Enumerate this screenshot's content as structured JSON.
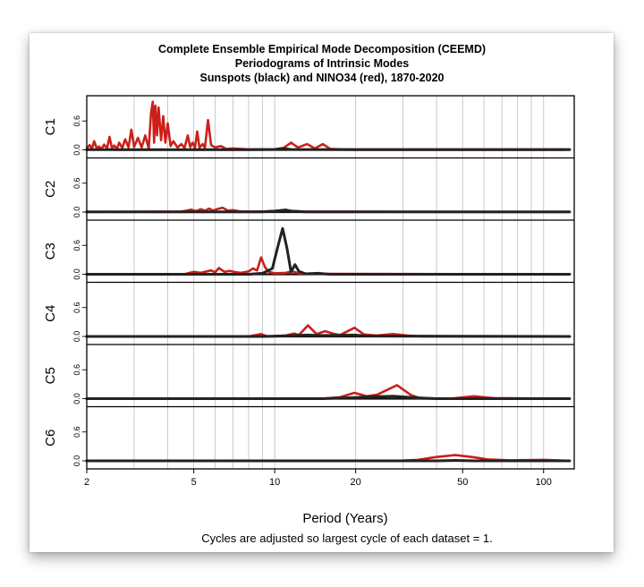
{
  "chart_data": {
    "type": "line",
    "title": [
      "Complete Ensemble Empirical Mode Decomposition (CEEMD)",
      "Periodograms of Intrinsic Modes",
      "Sunspots (black) and NINO34 (red), 1870-2020"
    ],
    "xlabel": "Period (Years)",
    "footnote": "Cycles are adjusted so largest cycle of each dataset = 1.",
    "x_scale": "log",
    "xlim": [
      2,
      130
    ],
    "x_ticks": [
      2,
      5,
      10,
      20,
      50,
      100
    ],
    "ylim": [
      0,
      1.05
    ],
    "y_ticks": [
      0.0,
      0.6
    ],
    "grid": true,
    "series_colors": {
      "sunspots": "#222222",
      "nino34": "#cc1f1a"
    },
    "panels": [
      {
        "label": "C1",
        "series": [
          {
            "color": "#cc1f1a",
            "points": [
              [
                2.0,
                0.03
              ],
              [
                2.05,
                0.1
              ],
              [
                2.09,
                0.02
              ],
              [
                2.13,
                0.18
              ],
              [
                2.18,
                0.03
              ],
              [
                2.22,
                0.07
              ],
              [
                2.27,
                0.02
              ],
              [
                2.32,
                0.11
              ],
              [
                2.38,
                0.03
              ],
              [
                2.43,
                0.27
              ],
              [
                2.48,
                0.04
              ],
              [
                2.53,
                0.09
              ],
              [
                2.59,
                0.02
              ],
              [
                2.64,
                0.15
              ],
              [
                2.71,
                0.04
              ],
              [
                2.78,
                0.22
              ],
              [
                2.86,
                0.05
              ],
              [
                2.93,
                0.42
              ],
              [
                3.0,
                0.06
              ],
              [
                3.1,
                0.25
              ],
              [
                3.2,
                0.05
              ],
              [
                3.3,
                0.3
              ],
              [
                3.4,
                0.03
              ],
              [
                3.47,
                0.78
              ],
              [
                3.52,
                1.0
              ],
              [
                3.56,
                0.15
              ],
              [
                3.6,
                0.92
              ],
              [
                3.65,
                0.3
              ],
              [
                3.7,
                0.88
              ],
              [
                3.78,
                0.2
              ],
              [
                3.85,
                0.7
              ],
              [
                3.92,
                0.15
              ],
              [
                4.0,
                0.55
              ],
              [
                4.1,
                0.08
              ],
              [
                4.2,
                0.18
              ],
              [
                4.35,
                0.05
              ],
              [
                4.5,
                0.12
              ],
              [
                4.62,
                0.04
              ],
              [
                4.75,
                0.3
              ],
              [
                4.85,
                0.06
              ],
              [
                4.95,
                0.15
              ],
              [
                5.05,
                0.04
              ],
              [
                5.15,
                0.38
              ],
              [
                5.25,
                0.05
              ],
              [
                5.4,
                0.12
              ],
              [
                5.5,
                0.04
              ],
              [
                5.65,
                0.62
              ],
              [
                5.8,
                0.1
              ],
              [
                6.0,
                0.05
              ],
              [
                6.3,
                0.08
              ],
              [
                6.6,
                0.02
              ],
              [
                7.0,
                0.03
              ],
              [
                8.0,
                0.01
              ],
              [
                10.0,
                0.01
              ],
              [
                10.8,
                0.04
              ],
              [
                11.5,
                0.15
              ],
              [
                12.2,
                0.05
              ],
              [
                13.2,
                0.12
              ],
              [
                14.1,
                0.03
              ],
              [
                15.1,
                0.12
              ],
              [
                16.1,
                0.02
              ],
              [
                18.0,
                0.01
              ],
              [
                25.0,
                0.01
              ],
              [
                60.0,
                0.01
              ],
              [
                125.0,
                0.01
              ]
            ]
          },
          {
            "color": "#222222",
            "points": [
              [
                2.0,
                0.005
              ],
              [
                8.0,
                0.005
              ],
              [
                10.0,
                0.01
              ],
              [
                10.7,
                0.03
              ],
              [
                11.5,
                0.01
              ],
              [
                20.0,
                0.005
              ],
              [
                125.0,
                0.005
              ]
            ]
          }
        ]
      },
      {
        "label": "C2",
        "series": [
          {
            "color": "#cc1f1a",
            "points": [
              [
                2.0,
                0.0
              ],
              [
                4.5,
                0.01
              ],
              [
                4.9,
                0.05
              ],
              [
                5.1,
                0.02
              ],
              [
                5.3,
                0.06
              ],
              [
                5.5,
                0.03
              ],
              [
                5.7,
                0.07
              ],
              [
                5.9,
                0.03
              ],
              [
                6.1,
                0.06
              ],
              [
                6.4,
                0.09
              ],
              [
                6.7,
                0.03
              ],
              [
                7.0,
                0.04
              ],
              [
                7.5,
                0.01
              ],
              [
                9.0,
                0.01
              ],
              [
                10.5,
                0.03
              ],
              [
                11.0,
                0.05
              ],
              [
                11.5,
                0.02
              ],
              [
                13.0,
                0.01
              ],
              [
                125.0,
                0.0
              ]
            ]
          },
          {
            "color": "#222222",
            "points": [
              [
                2.0,
                0.005
              ],
              [
                9.0,
                0.005
              ],
              [
                10.0,
                0.02
              ],
              [
                10.8,
                0.04
              ],
              [
                11.6,
                0.02
              ],
              [
                13.0,
                0.005
              ],
              [
                125.0,
                0.005
              ]
            ]
          }
        ]
      },
      {
        "label": "C3",
        "series": [
          {
            "color": "#cc1f1a",
            "points": [
              [
                2.0,
                0.0
              ],
              [
                4.6,
                0.0
              ],
              [
                5.0,
                0.05
              ],
              [
                5.3,
                0.03
              ],
              [
                5.5,
                0.05
              ],
              [
                5.8,
                0.08
              ],
              [
                6.0,
                0.04
              ],
              [
                6.2,
                0.13
              ],
              [
                6.5,
                0.05
              ],
              [
                6.8,
                0.07
              ],
              [
                7.2,
                0.04
              ],
              [
                7.5,
                0.03
              ],
              [
                8.0,
                0.06
              ],
              [
                8.3,
                0.12
              ],
              [
                8.6,
                0.08
              ],
              [
                8.9,
                0.35
              ],
              [
                9.2,
                0.15
              ],
              [
                9.5,
                0.05
              ],
              [
                10.0,
                0.02
              ],
              [
                11.0,
                0.03
              ],
              [
                11.6,
                0.06
              ],
              [
                12.3,
                0.02
              ],
              [
                13.0,
                0.01
              ],
              [
                125.0,
                0.0
              ]
            ]
          },
          {
            "color": "#222222",
            "points": [
              [
                2.0,
                0.0
              ],
              [
                8.0,
                0.0
              ],
              [
                9.0,
                0.02
              ],
              [
                9.8,
                0.12
              ],
              [
                10.3,
                0.6
              ],
              [
                10.7,
                0.95
              ],
              [
                11.1,
                0.55
              ],
              [
                11.5,
                0.05
              ],
              [
                11.9,
                0.2
              ],
              [
                12.3,
                0.06
              ],
              [
                13.0,
                0.01
              ],
              [
                14.5,
                0.02
              ],
              [
                16.0,
                0.0
              ],
              [
                125.0,
                0.0
              ]
            ]
          }
        ]
      },
      {
        "label": "C4",
        "series": [
          {
            "color": "#cc1f1a",
            "points": [
              [
                2.0,
                0.0
              ],
              [
                8.0,
                0.0
              ],
              [
                8.9,
                0.05
              ],
              [
                9.4,
                0.0
              ],
              [
                11.0,
                0.02
              ],
              [
                11.8,
                0.06
              ],
              [
                12.3,
                0.03
              ],
              [
                13.3,
                0.23
              ],
              [
                14.3,
                0.05
              ],
              [
                15.4,
                0.11
              ],
              [
                16.7,
                0.05
              ],
              [
                17.5,
                0.03
              ],
              [
                19.8,
                0.18
              ],
              [
                21.5,
                0.04
              ],
              [
                24.0,
                0.02
              ],
              [
                27.5,
                0.05
              ],
              [
                31.0,
                0.02
              ],
              [
                35.0,
                0.0
              ],
              [
                125.0,
                0.0
              ]
            ]
          },
          {
            "color": "#222222",
            "points": [
              [
                2.0,
                0.0
              ],
              [
                9.0,
                0.0
              ],
              [
                10.5,
                0.01
              ],
              [
                12.0,
                0.02
              ],
              [
                13.3,
                0.03
              ],
              [
                14.5,
                0.02
              ],
              [
                16.5,
                0.02
              ],
              [
                19.8,
                0.03
              ],
              [
                22.0,
                0.01
              ],
              [
                125.0,
                0.0
              ]
            ]
          }
        ]
      },
      {
        "label": "C5",
        "series": [
          {
            "color": "#cc1f1a",
            "points": [
              [
                2.0,
                0.0
              ],
              [
                15.0,
                0.0
              ],
              [
                17.5,
                0.03
              ],
              [
                19.8,
                0.12
              ],
              [
                22.0,
                0.05
              ],
              [
                24.0,
                0.08
              ],
              [
                28.5,
                0.28
              ],
              [
                32.0,
                0.08
              ],
              [
                35.0,
                0.0
              ],
              [
                45.0,
                0.0
              ],
              [
                55.0,
                0.05
              ],
              [
                65.0,
                0.01
              ],
              [
                125.0,
                0.0
              ]
            ]
          },
          {
            "color": "#222222",
            "points": [
              [
                2.0,
                0.0
              ],
              [
                15.0,
                0.0
              ],
              [
                19.5,
                0.02
              ],
              [
                23.0,
                0.04
              ],
              [
                28.0,
                0.05
              ],
              [
                33.0,
                0.02
              ],
              [
                40.0,
                0.0
              ],
              [
                125.0,
                0.0
              ]
            ]
          }
        ]
      },
      {
        "label": "C6",
        "series": [
          {
            "color": "#cc1f1a",
            "points": [
              [
                2.0,
                0.0
              ],
              [
                28.0,
                0.0
              ],
              [
                34.0,
                0.02
              ],
              [
                40.0,
                0.08
              ],
              [
                47.0,
                0.12
              ],
              [
                54.0,
                0.08
              ],
              [
                62.0,
                0.03
              ],
              [
                75.0,
                0.01
              ],
              [
                100.0,
                0.02
              ],
              [
                125.0,
                0.0
              ]
            ]
          },
          {
            "color": "#222222",
            "points": [
              [
                2.0,
                0.0
              ],
              [
                40.0,
                0.0
              ],
              [
                47.0,
                0.01
              ],
              [
                55.0,
                0.0
              ],
              [
                125.0,
                0.0
              ]
            ]
          }
        ]
      }
    ]
  }
}
